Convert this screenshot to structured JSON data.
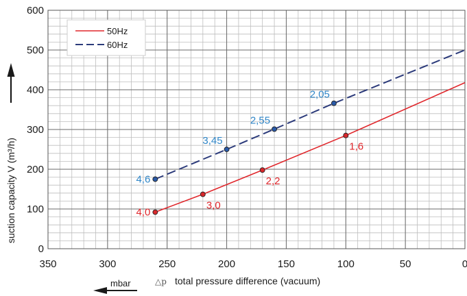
{
  "chart_data": {
    "type": "line",
    "xlabel": "total pressure difference (vacuum)",
    "xlabel_symbol": "△p",
    "x_unit": "mbar",
    "ylabel": "suction capacity V (m³/h)",
    "xlim": [
      350,
      0
    ],
    "ylim": [
      0,
      600
    ],
    "x_ticks": [
      350,
      300,
      250,
      200,
      150,
      100,
      50,
      0
    ],
    "y_ticks": [
      0,
      100,
      200,
      300,
      400,
      500,
      600
    ],
    "grid": true,
    "legend_position": "top-left",
    "series": [
      {
        "name": "50Hz",
        "style": "solid",
        "color": "#e0262b",
        "label_color": "#e0262b",
        "x": [
          260,
          220,
          170,
          100,
          0
        ],
        "y": [
          92,
          137,
          198,
          285,
          418
        ],
        "markers": [
          {
            "x": 260,
            "y": 92,
            "label": "4,0",
            "label_side": "left"
          },
          {
            "x": 220,
            "y": 137,
            "label": "3,0",
            "label_side": "below-right"
          },
          {
            "x": 170,
            "y": 198,
            "label": "2,2",
            "label_side": "below-right"
          },
          {
            "x": 100,
            "y": 285,
            "label": "1,6",
            "label_side": "below-right"
          }
        ]
      },
      {
        "name": "60Hz",
        "style": "dashed",
        "color": "#2b3a7a",
        "label_color": "#2f86c8",
        "x": [
          260,
          200,
          160,
          110,
          0
        ],
        "y": [
          175,
          250,
          301,
          366,
          500
        ],
        "markers": [
          {
            "x": 260,
            "y": 175,
            "label": "4,6",
            "label_side": "left"
          },
          {
            "x": 200,
            "y": 250,
            "label": "3,45",
            "label_side": "above-left"
          },
          {
            "x": 160,
            "y": 301,
            "label": "2,55",
            "label_side": "above-left"
          },
          {
            "x": 110,
            "y": 366,
            "label": "2,05",
            "label_side": "above-left"
          }
        ]
      }
    ]
  }
}
